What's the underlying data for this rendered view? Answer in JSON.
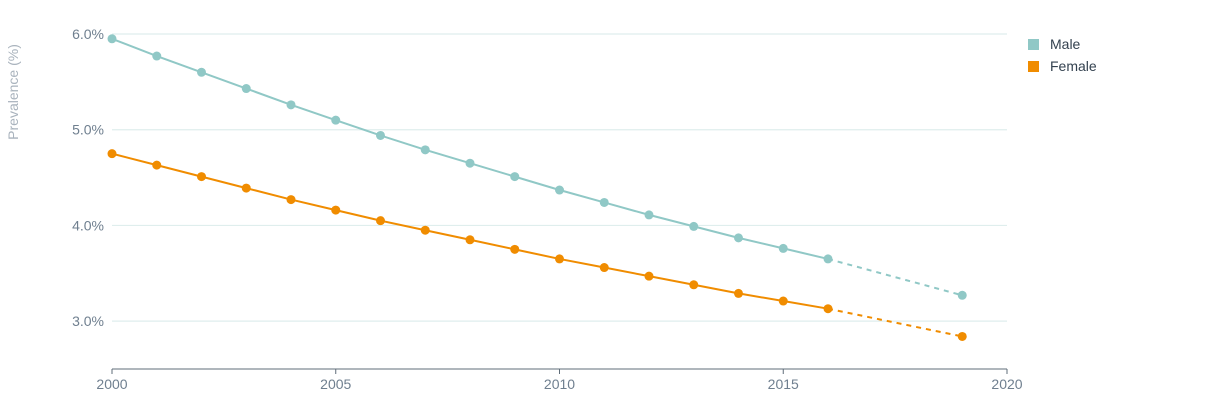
{
  "chart_data": {
    "type": "line",
    "ylabel": "Prevalence (%)",
    "xlim": [
      2000,
      2020
    ],
    "ylim": [
      2.5,
      6.0
    ],
    "x_ticks": [
      "2000",
      "2005",
      "2010",
      "2015",
      "2020"
    ],
    "y_ticks": [
      "3.0%",
      "4.0%",
      "5.0%",
      "6.0%"
    ],
    "grid": true,
    "legend_position": "top-right",
    "colors": {
      "grid": "#dfeeed",
      "axis": "#5f6c78"
    },
    "series": [
      {
        "name": "Male",
        "color": "#90c8c6",
        "x": [
          2000,
          2001,
          2002,
          2003,
          2004,
          2005,
          2006,
          2007,
          2008,
          2009,
          2010,
          2011,
          2012,
          2013,
          2014,
          2015,
          2016,
          2019
        ],
        "values": [
          5.95,
          5.77,
          5.6,
          5.43,
          5.26,
          5.1,
          4.94,
          4.79,
          4.65,
          4.51,
          4.37,
          4.24,
          4.11,
          3.99,
          3.87,
          3.76,
          3.65,
          3.27
        ],
        "projected_from_index": 16
      },
      {
        "name": "Female",
        "color": "#f08c00",
        "x": [
          2000,
          2001,
          2002,
          2003,
          2004,
          2005,
          2006,
          2007,
          2008,
          2009,
          2010,
          2011,
          2012,
          2013,
          2014,
          2015,
          2016,
          2019
        ],
        "values": [
          4.75,
          4.63,
          4.51,
          4.39,
          4.27,
          4.16,
          4.05,
          3.95,
          3.85,
          3.75,
          3.65,
          3.56,
          3.47,
          3.38,
          3.29,
          3.21,
          3.13,
          2.84
        ],
        "projected_from_index": 16
      }
    ]
  }
}
